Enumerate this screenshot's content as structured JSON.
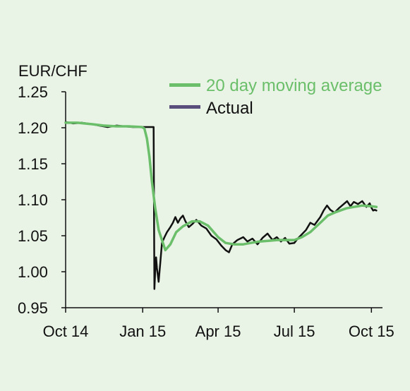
{
  "colors": {
    "background": "#e9f3e6",
    "ma_series": "#6bbf6a",
    "actual_series": "#111111",
    "actual_legend_swatch": "#5a4f7c",
    "axis": "#111111"
  },
  "chart_data": {
    "type": "line",
    "ylabel": "EUR/CHF",
    "ylim": [
      0.95,
      1.25
    ],
    "yticks": [
      1.25,
      1.2,
      1.15,
      1.1,
      1.05,
      1.0,
      0.95
    ],
    "ytick_labels": [
      "1.25",
      "1.20",
      "1.15",
      "1.10",
      "1.05",
      "1.00",
      "0.95"
    ],
    "xlim": [
      "2014-10-01",
      "2015-10-10"
    ],
    "xticks": [
      "2014-10-01",
      "2015-01-01",
      "2015-04-01",
      "2015-07-01",
      "2015-10-01"
    ],
    "xtick_labels": [
      "Oct 14",
      "Jan 15",
      "Apr 15",
      "Jul 15",
      "Oct 15"
    ],
    "legend": {
      "position": "top-right",
      "entries": [
        {
          "label": "20 day moving average",
          "series": "ma"
        },
        {
          "label": "Actual",
          "series": "actual"
        }
      ]
    },
    "grid": false,
    "series": [
      {
        "name": "20 day moving average",
        "key": "ma",
        "points": [
          [
            "2014-10-01",
            1.207
          ],
          [
            "2014-10-15",
            1.207
          ],
          [
            "2014-11-01",
            1.205
          ],
          [
            "2014-11-15",
            1.203
          ],
          [
            "2014-12-01",
            1.202
          ],
          [
            "2014-12-15",
            1.202
          ],
          [
            "2014-12-31",
            1.201
          ],
          [
            "2015-01-03",
            1.199
          ],
          [
            "2015-01-06",
            1.185
          ],
          [
            "2015-01-09",
            1.16
          ],
          [
            "2015-01-12",
            1.125
          ],
          [
            "2015-01-16",
            1.088
          ],
          [
            "2015-01-20",
            1.058
          ],
          [
            "2015-01-24",
            1.044
          ],
          [
            "2015-01-28",
            1.03
          ],
          [
            "2015-02-03",
            1.038
          ],
          [
            "2015-02-10",
            1.055
          ],
          [
            "2015-02-18",
            1.063
          ],
          [
            "2015-03-01",
            1.07
          ],
          [
            "2015-03-10",
            1.07
          ],
          [
            "2015-03-20",
            1.064
          ],
          [
            "2015-04-01",
            1.048
          ],
          [
            "2015-04-10",
            1.04
          ],
          [
            "2015-04-20",
            1.038
          ],
          [
            "2015-05-01",
            1.038
          ],
          [
            "2015-05-10",
            1.04
          ],
          [
            "2015-05-20",
            1.042
          ],
          [
            "2015-06-01",
            1.043
          ],
          [
            "2015-06-10",
            1.044
          ],
          [
            "2015-06-20",
            1.044
          ],
          [
            "2015-07-01",
            1.044
          ],
          [
            "2015-07-10",
            1.048
          ],
          [
            "2015-07-20",
            1.055
          ],
          [
            "2015-08-01",
            1.068
          ],
          [
            "2015-08-10",
            1.078
          ],
          [
            "2015-08-20",
            1.083
          ],
          [
            "2015-09-01",
            1.088
          ],
          [
            "2015-09-10",
            1.09
          ],
          [
            "2015-09-20",
            1.092
          ],
          [
            "2015-10-01",
            1.091
          ],
          [
            "2015-10-07",
            1.09
          ]
        ]
      },
      {
        "name": "Actual",
        "key": "actual",
        "points": [
          [
            "2014-10-01",
            1.208
          ],
          [
            "2014-10-10",
            1.206
          ],
          [
            "2014-10-20",
            1.207
          ],
          [
            "2014-11-01",
            1.205
          ],
          [
            "2014-11-10",
            1.203
          ],
          [
            "2014-11-20",
            1.201
          ],
          [
            "2014-12-01",
            1.203
          ],
          [
            "2014-12-10",
            1.202
          ],
          [
            "2014-12-20",
            1.201
          ],
          [
            "2014-12-31",
            1.201
          ],
          [
            "2015-01-14",
            1.201
          ],
          [
            "2015-01-15",
            0.976
          ],
          [
            "2015-01-16",
            1.002
          ],
          [
            "2015-01-17",
            1.02
          ],
          [
            "2015-01-18",
            1.005
          ],
          [
            "2015-01-20",
            0.986
          ],
          [
            "2015-01-22",
            1.012
          ],
          [
            "2015-01-24",
            1.04
          ],
          [
            "2015-01-27",
            1.048
          ],
          [
            "2015-01-30",
            1.055
          ],
          [
            "2015-02-03",
            1.062
          ],
          [
            "2015-02-06",
            1.068
          ],
          [
            "2015-02-09",
            1.076
          ],
          [
            "2015-02-12",
            1.068
          ],
          [
            "2015-02-15",
            1.074
          ],
          [
            "2015-02-18",
            1.078
          ],
          [
            "2015-02-21",
            1.07
          ],
          [
            "2015-02-25",
            1.062
          ],
          [
            "2015-03-01",
            1.066
          ],
          [
            "2015-03-06",
            1.072
          ],
          [
            "2015-03-12",
            1.064
          ],
          [
            "2015-03-18",
            1.06
          ],
          [
            "2015-03-24",
            1.05
          ],
          [
            "2015-03-30",
            1.045
          ],
          [
            "2015-04-05",
            1.036
          ],
          [
            "2015-04-10",
            1.03
          ],
          [
            "2015-04-14",
            1.027
          ],
          [
            "2015-04-18",
            1.038
          ],
          [
            "2015-04-24",
            1.044
          ],
          [
            "2015-05-01",
            1.048
          ],
          [
            "2015-05-06",
            1.042
          ],
          [
            "2015-05-12",
            1.046
          ],
          [
            "2015-05-18",
            1.038
          ],
          [
            "2015-05-24",
            1.047
          ],
          [
            "2015-05-30",
            1.053
          ],
          [
            "2015-06-05",
            1.044
          ],
          [
            "2015-06-10",
            1.048
          ],
          [
            "2015-06-15",
            1.042
          ],
          [
            "2015-06-20",
            1.047
          ],
          [
            "2015-06-25",
            1.039
          ],
          [
            "2015-07-01",
            1.04
          ],
          [
            "2015-07-05",
            1.046
          ],
          [
            "2015-07-10",
            1.052
          ],
          [
            "2015-07-15",
            1.058
          ],
          [
            "2015-07-20",
            1.068
          ],
          [
            "2015-07-25",
            1.065
          ],
          [
            "2015-08-01",
            1.076
          ],
          [
            "2015-08-05",
            1.085
          ],
          [
            "2015-08-09",
            1.092
          ],
          [
            "2015-08-13",
            1.086
          ],
          [
            "2015-08-18",
            1.082
          ],
          [
            "2015-08-23",
            1.088
          ],
          [
            "2015-08-28",
            1.093
          ],
          [
            "2015-09-02",
            1.098
          ],
          [
            "2015-09-06",
            1.091
          ],
          [
            "2015-09-10",
            1.097
          ],
          [
            "2015-09-15",
            1.094
          ],
          [
            "2015-09-20",
            1.098
          ],
          [
            "2015-09-25",
            1.09
          ],
          [
            "2015-09-29",
            1.095
          ],
          [
            "2015-10-01",
            1.089
          ],
          [
            "2015-10-03",
            1.085
          ],
          [
            "2015-10-05",
            1.086
          ],
          [
            "2015-10-07",
            1.085
          ]
        ]
      }
    ]
  }
}
